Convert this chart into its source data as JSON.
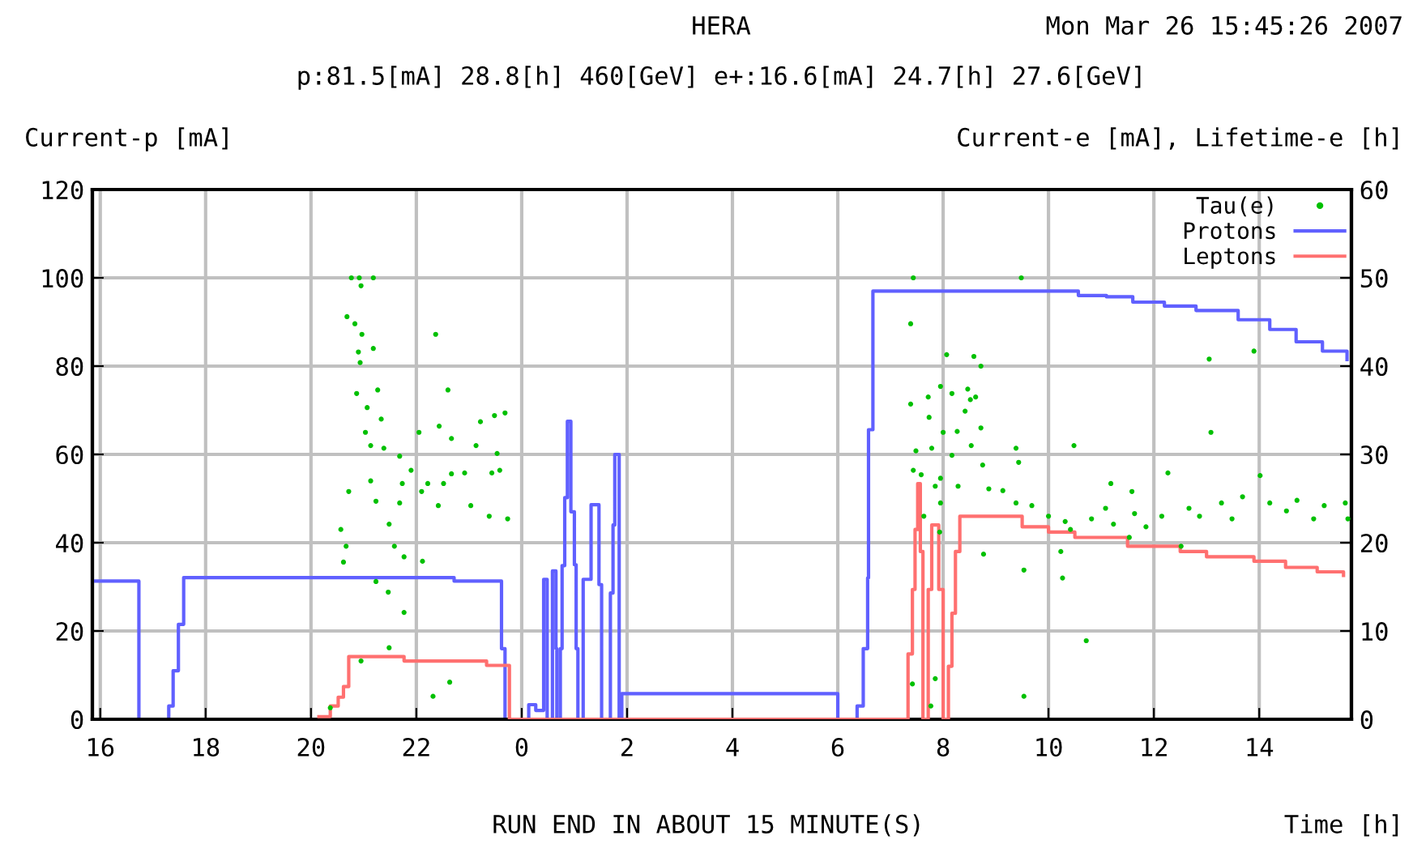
{
  "chart_data": {
    "type": "step",
    "title": "HERA",
    "subtitle": "p:81.5[mA] 28.8[h] 460[GeV] e+:16.6[mA] 24.7[h] 27.6[GeV]",
    "ylabel": "Current-p [mA]",
    "y2label": "Current-e [mA], Lifetime-e [h]",
    "xlabel": "Time [h]",
    "annotations": [
      "Mon Mar 26 15:45:26 2007",
      "RUN END IN ABOUT 15 MINUTE(S)"
    ],
    "xlim": [
      "2007-03-25T15:51",
      "2007-03-26T15:45"
    ],
    "xticks": [
      {
        "value": "2007-03-25T16:00",
        "label": "16"
      },
      {
        "value": "2007-03-25T18:00",
        "label": "18"
      },
      {
        "value": "2007-03-25T20:00",
        "label": "20"
      },
      {
        "value": "2007-03-25T22:00",
        "label": "22"
      },
      {
        "value": "2007-03-26T00:00",
        "label": "0"
      },
      {
        "value": "2007-03-26T02:00",
        "label": "2"
      },
      {
        "value": "2007-03-26T04:00",
        "label": "4"
      },
      {
        "value": "2007-03-26T06:00",
        "label": "6"
      },
      {
        "value": "2007-03-26T08:00",
        "label": "8"
      },
      {
        "value": "2007-03-26T10:00",
        "label": "10"
      },
      {
        "value": "2007-03-26T12:00",
        "label": "12"
      },
      {
        "value": "2007-03-26T14:00",
        "label": "14"
      }
    ],
    "ylim": [
      0,
      120
    ],
    "yticks": [
      0,
      20,
      40,
      60,
      80,
      100,
      120
    ],
    "y2lim": [
      0,
      60
    ],
    "y2ticks": [
      0,
      10,
      20,
      30,
      40,
      50,
      60
    ],
    "grid": true,
    "legend": "top right",
    "series": [
      {
        "name": "Tau(e)",
        "type": "scatter",
        "axis": "y2",
        "color": "#00c000",
        "marker": "circle",
        "x": [
          "2007-03-25T20:46",
          "2007-03-25T20:55",
          "2007-03-25T21:11",
          "2007-03-25T20:57",
          "2007-03-25T20:41",
          "2007-03-25T20:50",
          "2007-03-25T20:58",
          "2007-03-25T21:11",
          "2007-03-25T20:54",
          "2007-03-25T20:56",
          "2007-03-25T22:22",
          "2007-03-25T20:52",
          "2007-03-25T21:16",
          "2007-03-25T22:36",
          "2007-03-25T21:04",
          "2007-03-25T21:20",
          "2007-03-25T21:02",
          "2007-03-25T21:08",
          "2007-03-25T21:23",
          "2007-03-25T21:41",
          "2007-03-25T22:03",
          "2007-03-25T22:26",
          "2007-03-25T22:40",
          "2007-03-25T23:13",
          "2007-03-25T23:29",
          "2007-03-25T23:41",
          "2007-03-25T23:08",
          "2007-03-25T23:32",
          "2007-03-25T21:54",
          "2007-03-25T22:31",
          "2007-03-25T22:55",
          "2007-03-25T23:26",
          "2007-03-25T23:35",
          "2007-03-25T21:08",
          "2007-03-25T21:44",
          "2007-03-25T22:06",
          "2007-03-25T21:41",
          "2007-03-25T22:25",
          "2007-03-25T23:02",
          "2007-03-25T23:23",
          "2007-03-25T23:44",
          "2007-03-25T20:43",
          "2007-03-25T21:14",
          "2007-03-25T20:34",
          "2007-03-25T20:40",
          "2007-03-25T20:37",
          "2007-03-25T21:29",
          "2007-03-25T21:35",
          "2007-03-25T21:46",
          "2007-03-25T22:07",
          "2007-03-25T21:14",
          "2007-03-25T21:28",
          "2007-03-25T21:46",
          "2007-03-25T21:29",
          "2007-03-25T20:57",
          "2007-03-25T22:38",
          "2007-03-25T22:19",
          "2007-03-25T20:22",
          "2007-03-25T22:40",
          "2007-03-25T22:13",
          "2007-03-26T07:26",
          "2007-03-26T09:29",
          "2007-03-26T07:23",
          "2007-03-26T08:04",
          "2007-03-26T08:35",
          "2007-03-26T08:43",
          "2007-03-26T07:57",
          "2007-03-26T07:43",
          "2007-03-26T07:23",
          "2007-03-26T08:10",
          "2007-03-26T08:28",
          "2007-03-26T08:31",
          "2007-03-26T08:37",
          "2007-03-26T08:25",
          "2007-03-26T07:44",
          "2007-03-26T08:00",
          "2007-03-26T08:16",
          "2007-03-26T08:43",
          "2007-03-26T08:32",
          "2007-03-26T07:29",
          "2007-03-26T07:47",
          "2007-03-26T08:10",
          "2007-03-26T09:23",
          "2007-03-26T09:26",
          "2007-03-26T10:29",
          "2007-03-26T07:26",
          "2007-03-26T07:35",
          "2007-03-26T07:57",
          "2007-03-26T08:17",
          "2007-03-26T07:51",
          "2007-03-26T07:57",
          "2007-03-26T07:38",
          "2007-03-26T08:45",
          "2007-03-26T08:52",
          "2007-03-26T09:08",
          "2007-03-26T09:23",
          "2007-03-26T09:41",
          "2007-03-26T10:00",
          "2007-03-26T11:11",
          "2007-03-26T11:35",
          "2007-03-26T12:16",
          "2007-03-26T14:01",
          "2007-03-26T10:19",
          "2007-03-26T10:49",
          "2007-03-26T11:38",
          "2007-03-26T12:09",
          "2007-03-26T12:40",
          "2007-03-26T13:17",
          "2007-03-26T13:41",
          "2007-03-26T14:12",
          "2007-03-26T14:43",
          "2007-03-26T15:14",
          "2007-03-26T15:38",
          "2007-03-26T10:25",
          "2007-03-26T11:32",
          "2007-03-26T12:31",
          "2007-03-26T10:14",
          "2007-03-26T10:16",
          "2007-03-26T08:46",
          "2007-03-26T09:32",
          "2007-03-26T13:03",
          "2007-03-26T13:54",
          "2007-03-26T13:05",
          "2007-03-26T10:43",
          "2007-03-26T09:32",
          "2007-03-26T07:56",
          "2007-03-26T07:51",
          "2007-03-26T07:25",
          "2007-03-26T07:46",
          "2007-03-26T11:05",
          "2007-03-26T12:52",
          "2007-03-26T14:31",
          "2007-03-26T11:14",
          "2007-03-26T11:51",
          "2007-03-26T13:29",
          "2007-03-26T15:02",
          "2007-03-26T15:41"
        ],
        "values": [
          50,
          50,
          50,
          49.1,
          45.6,
          44.8,
          43.6,
          42.0,
          41.6,
          40.4,
          43.6,
          36.9,
          37.3,
          37.3,
          35.3,
          34,
          32.5,
          31,
          30.7,
          29.8,
          32.5,
          33.2,
          31.8,
          33.7,
          34.4,
          34.7,
          31,
          30.1,
          28.2,
          26.7,
          27.9,
          27.9,
          28.2,
          27,
          26.7,
          25.8,
          24.5,
          24.2,
          24.2,
          23,
          22.7,
          25.8,
          24.7,
          21.5,
          19.6,
          17.8,
          22.1,
          19.6,
          18.4,
          17.9,
          15.6,
          14.4,
          12.1,
          8.1,
          6.6,
          4.2,
          2.6,
          1.3,
          27.8,
          26.7,
          50,
          50,
          44.8,
          41.3,
          41.1,
          40,
          37.7,
          36.5,
          35.7,
          36.9,
          37.4,
          36.2,
          36.5,
          34.9,
          34.2,
          32.5,
          32.6,
          33,
          31,
          30.4,
          30.7,
          29.9,
          30.7,
          29.1,
          31,
          28.2,
          27.7,
          27.3,
          26.4,
          26.4,
          24.5,
          23,
          28.8,
          26.1,
          25.9,
          24.5,
          24.2,
          23,
          26.7,
          25.8,
          27.9,
          27.6,
          22.4,
          22.7,
          23.3,
          23,
          23.9,
          24.5,
          25.2,
          24.5,
          24.8,
          24.2,
          24.5,
          21.5,
          20.6,
          19.6,
          19,
          16,
          18.7,
          16.9,
          40.8,
          41.7,
          32.5,
          8.9,
          2.6,
          21.2,
          4.6,
          4,
          1.5,
          23.9,
          23,
          23.6,
          22.1,
          21.8,
          22.7,
          22.7,
          22.7
        ]
      },
      {
        "name": "Protons",
        "color": "#6060ff",
        "x": [
          "2007-03-25T15:51",
          "2007-03-25T16:44",
          "2007-03-25T17:18",
          "2007-03-25T17:23",
          "2007-03-25T17:29",
          "2007-03-25T17:35",
          "2007-03-25T22:43",
          "2007-03-25T23:37",
          "2007-03-25T23:41",
          "2007-03-26T00:08",
          "2007-03-26T00:16",
          "2007-03-26T00:25",
          "2007-03-26T00:29",
          "2007-03-26T00:35",
          "2007-03-26T00:39",
          "2007-03-26T00:40",
          "2007-03-26T00:44",
          "2007-03-26T00:46",
          "2007-03-26T00:49",
          "2007-03-26T00:52",
          "2007-03-26T00:56",
          "2007-03-26T01:00",
          "2007-03-26T01:02",
          "2007-03-26T01:04",
          "2007-03-26T01:10",
          "2007-03-26T01:19",
          "2007-03-26T01:28",
          "2007-03-26T01:31",
          "2007-03-26T01:41",
          "2007-03-26T01:44",
          "2007-03-26T01:46",
          "2007-03-26T01:51",
          "2007-03-26T01:54",
          "2007-03-26T06:00",
          "2007-03-26T06:22",
          "2007-03-26T06:29",
          "2007-03-26T06:34",
          "2007-03-26T06:35",
          "2007-03-26T06:40",
          "2007-03-26T10:34",
          "2007-03-26T11:06",
          "2007-03-26T11:36",
          "2007-03-26T12:12",
          "2007-03-26T12:48",
          "2007-03-26T13:36",
          "2007-03-26T14:12",
          "2007-03-26T14:42",
          "2007-03-26T15:12",
          "2007-03-26T15:40"
        ],
        "values": [
          31.3,
          0,
          3,
          11,
          21.5,
          32.1,
          31.3,
          16,
          0,
          3.3,
          2,
          31.7,
          0,
          33.6,
          16,
          0,
          16,
          34.8,
          50.2,
          67.5,
          47,
          35,
          16,
          0,
          31.7,
          48.6,
          30.5,
          0,
          28.6,
          44,
          60,
          0,
          5.8,
          0,
          3,
          16,
          32,
          65.6,
          97,
          96,
          95.7,
          94.5,
          93.6,
          92.6,
          90.5,
          88.3,
          85.5,
          83.4,
          81.5
        ]
      },
      {
        "name": "Leptons",
        "axis": "y2",
        "color": "#ff7070",
        "x": [
          "2007-03-25T20:09",
          "2007-03-25T20:22",
          "2007-03-25T20:31",
          "2007-03-25T20:37",
          "2007-03-25T20:43",
          "2007-03-25T21:46",
          "2007-03-25T23:20",
          "2007-03-25T23:46",
          "2007-03-26T07:20",
          "2007-03-26T07:25",
          "2007-03-26T07:28",
          "2007-03-26T07:31",
          "2007-03-26T07:34",
          "2007-03-26T07:37",
          "2007-03-26T07:43",
          "2007-03-26T07:47",
          "2007-03-26T07:55",
          "2007-03-26T08:00",
          "2007-03-26T08:06",
          "2007-03-26T08:10",
          "2007-03-26T08:14",
          "2007-03-26T08:19",
          "2007-03-26T09:30",
          "2007-03-26T10:00",
          "2007-03-26T10:30",
          "2007-03-26T11:30",
          "2007-03-26T12:30",
          "2007-03-26T13:00",
          "2007-03-26T13:54",
          "2007-03-26T14:30",
          "2007-03-26T15:06",
          "2007-03-26T15:36"
        ],
        "values": [
          0.3,
          1.5,
          2.5,
          3.7,
          7.1,
          6.6,
          6.1,
          0,
          7.4,
          14.7,
          21.5,
          26.7,
          19,
          0,
          14.7,
          22,
          14.7,
          0,
          6,
          12,
          19,
          23,
          21.8,
          21.2,
          20.6,
          19.6,
          19,
          18.4,
          17.9,
          17.2,
          16.7,
          16.3
        ]
      }
    ]
  }
}
